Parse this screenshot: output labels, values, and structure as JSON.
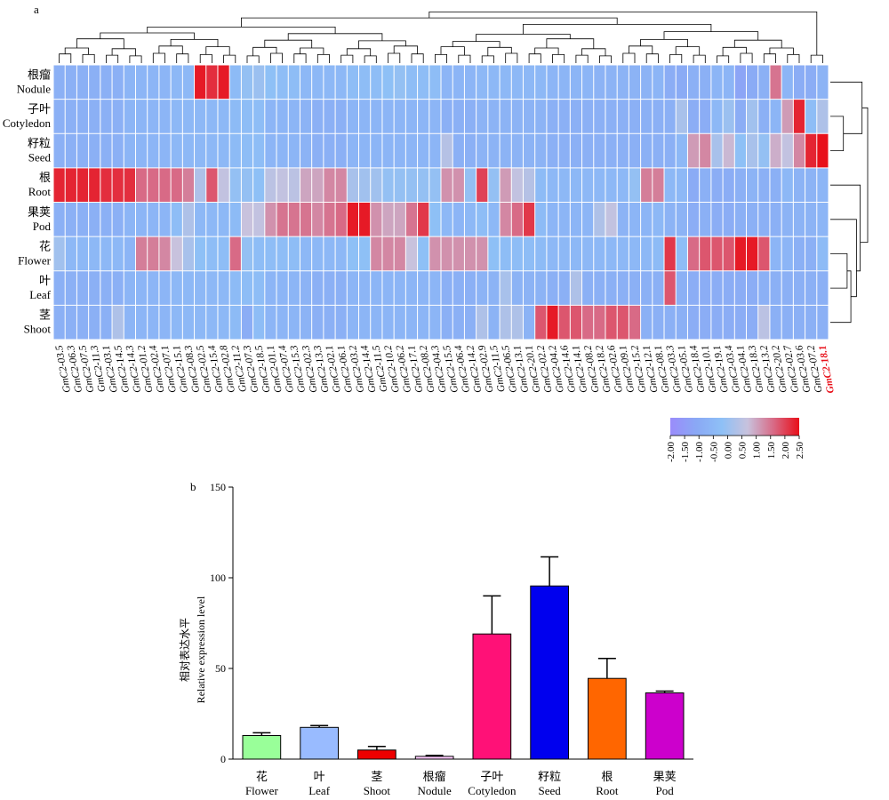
{
  "panel_a_label": "a",
  "panel_b_label": "b",
  "chart_data": [
    {
      "type": "heatmap",
      "rows": [
        {
          "zh": "根瘤",
          "en": "Nodule"
        },
        {
          "zh": "子叶",
          "en": "Cotyledon"
        },
        {
          "zh": "籽粒",
          "en": "Seed"
        },
        {
          "zh": "根",
          "en": "Root"
        },
        {
          "zh": "果荚",
          "en": "Pod"
        },
        {
          "zh": "花",
          "en": "Flower"
        },
        {
          "zh": "叶",
          "en": "Leaf"
        },
        {
          "zh": "茎",
          "en": "Shoot"
        }
      ],
      "columns": [
        "GmC2-03.5",
        "GmC2-06.3",
        "GmC2-07.5",
        "GmC2-11.3",
        "GmC2-03.1",
        "GmC2-14.5",
        "GmC2-14.3",
        "GmC2-01.2",
        "GmC2-02.4",
        "GmC2-07.1",
        "GmC2-15.1",
        "GmC2-08.3",
        "GmC2-02.5",
        "GmC2-15.4",
        "GmC2-02.8",
        "GmC2-11.2",
        "GmC2-07.3",
        "GmC2-18.5",
        "GmC2-01.1",
        "GmC2-07.4",
        "GmC2-15.3",
        "GmC2-02.3",
        "GmC2-13.3",
        "GmC2-02.1",
        "GmC2-06.1",
        "GmC2-03.2",
        "GmC2-14.4",
        "GmC2-11.5",
        "GmC2-10.2",
        "GmC2-06.2",
        "GmC2-17.1",
        "GmC2-08.2",
        "GmC2-04.3",
        "GmC2-15.5",
        "GmC2-06.4",
        "GmC2-14.2",
        "GmC2-02.9",
        "GmC2-11.5",
        "GmC2-06.5",
        "GmC2-13.1",
        "GmC2-20.1",
        "GmC2-02.2",
        "GmC2-04.2",
        "GmC2-14.6",
        "GmC2-14.1",
        "GmC2-08.2",
        "GmC2-18.2",
        "GmC2-02.6",
        "GmC2-09.1",
        "GmC2-15.2",
        "GmC2-12.1",
        "GmC2-08.1",
        "GmC2-03.3",
        "GmC2-05.1",
        "GmC2-18.4",
        "GmC2-10.1",
        "GmC2-19.1",
        "GmC2-03.4",
        "GmC2-04.1",
        "GmC2-18.3",
        "GmC2-13.2",
        "GmC2-20.2",
        "GmC2-02.7",
        "GmC2-03.6",
        "GmC2-07.2",
        "GmC2-18.1"
      ],
      "highlight_column": "GmC2-18.1",
      "highlight_color": "#e8101a",
      "values": [
        [
          -0.8,
          -0.8,
          -0.8,
          -0.8,
          -0.8,
          -0.8,
          -0.6,
          -0.6,
          -0.6,
          -0.6,
          -0.5,
          -0.5,
          2.4,
          2.2,
          2.4,
          -0.4,
          -0.1,
          0.0,
          -0.2,
          -0.3,
          -0.3,
          -0.5,
          -0.5,
          -0.5,
          -0.5,
          -0.3,
          -0.3,
          -0.3,
          -0.2,
          -0.1,
          -0.3,
          -0.3,
          -0.3,
          -0.6,
          -0.6,
          -0.6,
          -0.5,
          -0.5,
          -0.5,
          -0.5,
          -0.5,
          -0.5,
          -0.6,
          -0.6,
          -0.6,
          -0.6,
          -0.7,
          -0.7,
          -0.7,
          -0.7,
          -0.7,
          -0.6,
          -0.9,
          -1.0,
          -0.8,
          -0.8,
          -0.6,
          -0.6,
          -1.2,
          -1.0,
          -0.8,
          1.5,
          -0.6,
          -0.9,
          -0.9,
          -0.7
        ],
        [
          -0.8,
          -0.8,
          -0.8,
          -0.8,
          -0.8,
          -0.8,
          -0.6,
          -0.6,
          -0.6,
          -0.6,
          -0.5,
          -0.5,
          -0.5,
          -0.5,
          -0.5,
          -0.4,
          -0.3,
          -0.3,
          -0.6,
          -0.6,
          -0.6,
          -0.7,
          -0.8,
          -0.8,
          -0.8,
          -0.6,
          -0.6,
          -0.6,
          -0.6,
          -0.6,
          -0.6,
          -0.6,
          -0.6,
          -0.8,
          -0.8,
          -0.8,
          -0.7,
          -0.7,
          -0.7,
          -0.7,
          -0.7,
          -0.7,
          -0.8,
          -0.8,
          -0.8,
          -0.8,
          -0.8,
          -0.8,
          -0.8,
          -0.8,
          -0.8,
          -0.8,
          -0.8,
          0.2,
          -0.9,
          -0.9,
          -0.5,
          0.0,
          -0.9,
          0.1,
          -0.8,
          -0.6,
          1.1,
          2.3,
          -0.3,
          0.3
        ],
        [
          -0.8,
          -0.8,
          -0.8,
          -0.8,
          -0.8,
          -0.8,
          -0.6,
          -0.6,
          -0.6,
          -0.6,
          -0.5,
          -0.5,
          -0.5,
          -0.5,
          -0.5,
          -0.4,
          -0.3,
          -0.3,
          -0.6,
          -0.6,
          -0.6,
          -0.7,
          -0.8,
          -0.8,
          -0.8,
          -0.6,
          -0.6,
          -0.6,
          -0.6,
          -0.6,
          -0.6,
          -0.6,
          -0.6,
          0.4,
          -0.8,
          -0.8,
          -0.7,
          -0.7,
          -0.7,
          -0.7,
          -0.7,
          -0.7,
          -0.8,
          -0.8,
          -0.8,
          -0.8,
          -0.8,
          -0.8,
          -0.8,
          -0.8,
          -0.8,
          -0.8,
          -0.8,
          -0.5,
          1.1,
          1.3,
          0.2,
          0.8,
          -0.2,
          0.2,
          -0.1,
          0.9,
          0.6,
          1.3,
          2.3,
          2.5
        ],
        [
          2.3,
          2.3,
          2.3,
          2.3,
          2.2,
          2.2,
          2.2,
          1.6,
          1.6,
          1.6,
          1.6,
          1.4,
          0.3,
          1.8,
          0.6,
          -0.1,
          -0.1,
          -0.2,
          0.5,
          0.6,
          0.5,
          1.0,
          1.0,
          1.3,
          1.3,
          0.2,
          0.1,
          0.1,
          -0.1,
          -0.1,
          -0.1,
          -0.1,
          -0.1,
          1.2,
          1.2,
          -0.1,
          2.0,
          -0.1,
          1.1,
          0.6,
          0.4,
          -0.4,
          -0.5,
          -0.5,
          -0.5,
          -0.5,
          -0.5,
          -0.5,
          -0.5,
          -0.1,
          1.4,
          1.4,
          -0.5,
          -0.5,
          -1.0,
          -0.8,
          -0.9,
          -0.9,
          -0.8,
          -0.7,
          -0.8,
          -0.8,
          -0.5,
          -0.7,
          -0.7,
          -0.6
        ],
        [
          -0.8,
          -0.8,
          -0.8,
          -0.8,
          -0.8,
          -0.8,
          -0.6,
          -0.6,
          -0.6,
          -0.6,
          -0.3,
          0.3,
          -0.5,
          -0.5,
          -0.5,
          -0.4,
          0.7,
          0.6,
          1.2,
          1.5,
          1.5,
          1.5,
          1.3,
          1.5,
          1.6,
          2.4,
          2.4,
          1.2,
          1.0,
          1.0,
          1.5,
          2.1,
          -0.2,
          -0.5,
          -0.6,
          -0.5,
          -0.3,
          -0.5,
          1.3,
          1.6,
          2.1,
          -0.4,
          -0.6,
          -0.6,
          -0.6,
          -0.6,
          0.3,
          0.6,
          -0.7,
          -0.6,
          -0.6,
          -0.5,
          -0.7,
          -0.7,
          -0.9,
          -0.8,
          -0.9,
          -0.9,
          -0.8,
          -0.8,
          -0.8,
          -0.8,
          -0.7,
          -0.7,
          -0.7,
          -0.6
        ],
        [
          0.1,
          -0.5,
          -0.5,
          -0.5,
          -0.5,
          -0.5,
          -0.6,
          1.4,
          1.4,
          1.3,
          0.7,
          0.2,
          -0.2,
          -0.3,
          -0.3,
          1.6,
          -0.1,
          -0.3,
          -0.3,
          -0.3,
          -0.3,
          -0.5,
          -0.5,
          -0.5,
          -0.5,
          -0.2,
          -0.2,
          1.3,
          1.3,
          1.3,
          0.7,
          -0.2,
          1.2,
          1.2,
          1.2,
          1.2,
          1.2,
          -0.2,
          -0.3,
          -0.3,
          -0.3,
          -0.4,
          -0.5,
          -0.5,
          -0.5,
          -0.5,
          -0.5,
          -0.5,
          -0.5,
          -0.5,
          -0.5,
          -0.4,
          2.1,
          -0.3,
          1.6,
          1.8,
          1.8,
          1.8,
          2.4,
          2.4,
          1.8,
          -0.6,
          -0.6,
          -0.8,
          -0.8,
          -0.4
        ],
        [
          -0.8,
          -0.8,
          -0.8,
          -0.8,
          -0.8,
          -0.8,
          -0.6,
          -0.6,
          -0.6,
          -0.6,
          -0.5,
          -0.5,
          -0.5,
          -0.5,
          -0.5,
          -0.4,
          -0.3,
          -0.3,
          -0.6,
          -0.6,
          -0.6,
          -0.7,
          -0.8,
          -0.8,
          -0.8,
          -0.6,
          -0.6,
          -0.6,
          -0.6,
          -0.6,
          -0.6,
          -0.6,
          -0.6,
          -0.8,
          -0.8,
          -0.8,
          -0.7,
          -0.7,
          0.2,
          -0.7,
          -0.7,
          -0.7,
          -0.8,
          -0.8,
          0.3,
          -0.8,
          -0.8,
          -0.8,
          -0.8,
          -0.8,
          -0.8,
          -0.8,
          1.8,
          -0.8,
          -0.9,
          -0.9,
          -0.9,
          -0.9,
          -0.9,
          -0.9,
          -0.8,
          -0.8,
          -0.8,
          -0.8,
          -0.8,
          -0.8
        ],
        [
          -0.8,
          -0.8,
          -0.8,
          -0.8,
          -0.8,
          0.3,
          -0.6,
          -0.6,
          -0.6,
          -0.6,
          -0.5,
          -0.5,
          -0.5,
          -0.5,
          -0.5,
          -0.4,
          -0.9,
          -0.3,
          -0.6,
          -0.6,
          -0.6,
          -0.7,
          -0.8,
          -0.8,
          -0.8,
          -0.6,
          -0.6,
          -0.6,
          -0.6,
          -0.6,
          -0.6,
          -0.6,
          -0.6,
          -0.8,
          -0.8,
          -0.8,
          0.3,
          -0.7,
          0.3,
          0.3,
          -0.7,
          1.8,
          2.4,
          1.8,
          1.8,
          1.6,
          1.6,
          1.8,
          1.8,
          1.6,
          -0.8,
          -0.8,
          -0.8,
          -0.8,
          -0.9,
          -0.9,
          -0.9,
          -0.9,
          -0.9,
          -0.9,
          0.5,
          -0.8,
          -0.8,
          -0.8,
          -0.8,
          -0.8
        ]
      ],
      "colorbar": {
        "min": -2.0,
        "max": 2.5,
        "ticks": [
          "-2.00",
          "-1.50",
          "-1.00",
          "-0.50",
          "0.00",
          "0.50",
          "1.00",
          "1.50",
          "2.00",
          "2.50"
        ],
        "colors": [
          "#9a8cfb",
          "#8aa8f5",
          "#8ec0f6",
          "#c8c2dd",
          "#d86a86",
          "#e8101a"
        ]
      },
      "dendrograms": {
        "columns": "top",
        "rows": "right"
      }
    },
    {
      "type": "bar",
      "categories": [
        {
          "zh": "花",
          "en": "Flower"
        },
        {
          "zh": "叶",
          "en": "Leaf"
        },
        {
          "zh": "茎",
          "en": "Shoot"
        },
        {
          "zh": "根瘤",
          "en": "Nodule"
        },
        {
          "zh": "子叶",
          "en": "Cotyledon"
        },
        {
          "zh": "籽粒",
          "en": "Seed"
        },
        {
          "zh": "根",
          "en": "Root"
        },
        {
          "zh": "果荚",
          "en": "Pod"
        }
      ],
      "values": [
        13,
        17.5,
        5,
        1.5,
        69,
        95.5,
        44.5,
        36.5
      ],
      "errors": [
        1.5,
        1,
        2,
        0.5,
        21,
        16,
        11,
        1
      ],
      "colors": [
        "#99ff99",
        "#99bbff",
        "#ee0000",
        "#ffccff",
        "#ff1177",
        "#0000ee",
        "#ff6600",
        "#cc00cc"
      ],
      "ylabel_zh": "相对表达水平",
      "ylabel_en": "Relative expression level",
      "ylim": [
        0,
        150
      ],
      "yticks": [
        0,
        50,
        100,
        150
      ],
      "grid": false
    }
  ]
}
